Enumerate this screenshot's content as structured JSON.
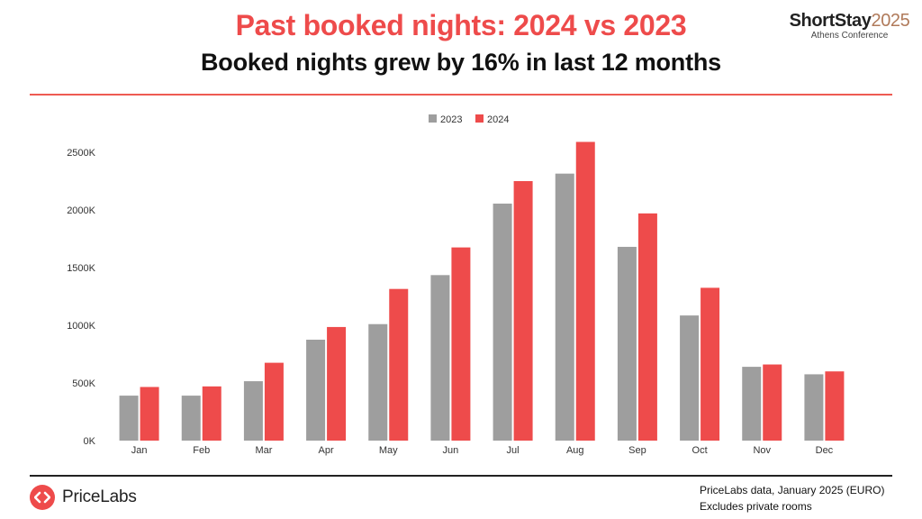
{
  "header": {
    "title": "Past booked nights: 2024 vs 2023",
    "subtitle": "Booked nights grew by 16% in last 12 months"
  },
  "conference_logo": {
    "brand_text": "ShortStay",
    "brand_year": "2025",
    "event": "Athens Conference"
  },
  "footer": {
    "brand_name": "PriceLabs",
    "note_line1": "PriceLabs data, January 2025 (EURO)",
    "note_line2": "Excludes private rooms"
  },
  "colors": {
    "accent": "#ee4b4b",
    "series_2023": "#9e9e9e",
    "series_2024": "#ee4b4b"
  },
  "chart_data": {
    "type": "bar",
    "title": "",
    "xlabel": "",
    "ylabel": "",
    "categories": [
      "Jan",
      "Feb",
      "Mar",
      "Apr",
      "May",
      "Jun",
      "Jul",
      "Aug",
      "Sep",
      "Oct",
      "Nov",
      "Dec"
    ],
    "series": [
      {
        "name": "2023",
        "color": "#9e9e9e",
        "values": [
          390,
          390,
          515,
          875,
          1010,
          1435,
          2055,
          2315,
          1680,
          1085,
          640,
          575
        ]
      },
      {
        "name": "2024",
        "color": "#ee4b4b",
        "values": [
          465,
          470,
          675,
          985,
          1315,
          1675,
          2250,
          2590,
          1970,
          1325,
          660,
          600
        ]
      }
    ],
    "ylim": [
      0,
      2500
    ],
    "y_ticks": [
      0,
      500,
      1000,
      1500,
      2000,
      2500
    ],
    "y_tick_labels": [
      "0K",
      "500K",
      "1000K",
      "1500K",
      "2000K",
      "2500K"
    ],
    "legend_position": "top-center",
    "grid": false
  }
}
